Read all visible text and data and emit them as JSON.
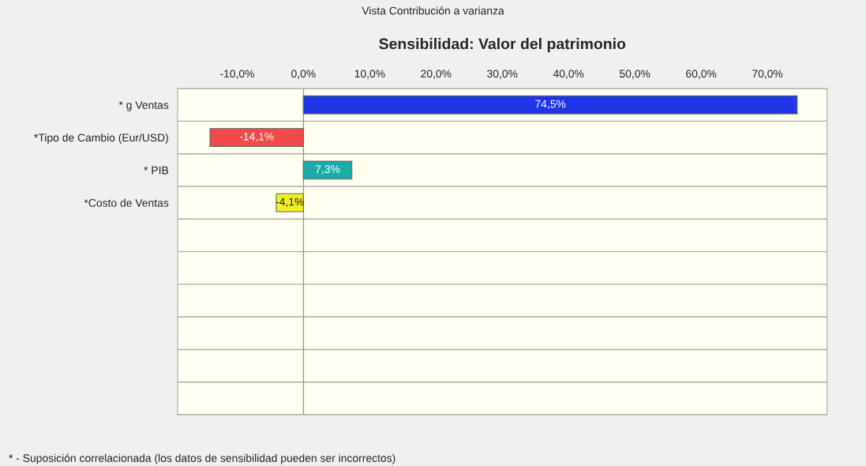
{
  "chart_data": {
    "type": "bar",
    "orientation": "horizontal",
    "title": "Sensibilidad: Valor del patrimonio",
    "categories": [
      "* g Ventas",
      "*Tipo de Cambio (Eur/USD)",
      "* PIB",
      "*Costo de Ventas",
      null,
      null,
      null,
      null,
      null,
      null
    ],
    "values": [
      74.5,
      -14.1,
      7.3,
      -4.1,
      null,
      null,
      null,
      null,
      null,
      null
    ],
    "colors": [
      "#1f35e8",
      "#f24a4a",
      "#1aada8",
      "#f0f020",
      null,
      null,
      null,
      null,
      null,
      null
    ],
    "value_labels": [
      "74,5%",
      "-14,1%",
      "7,3%",
      "-4,1%",
      null,
      null,
      null,
      null,
      null,
      null
    ],
    "xlim": [
      -19,
      79
    ],
    "xticks": [
      {
        "value": -10,
        "label": "-10,0%"
      },
      {
        "value": 0,
        "label": "0,0%"
      },
      {
        "value": 10,
        "label": "10,0%"
      },
      {
        "value": 20,
        "label": "20,0%"
      },
      {
        "value": 30,
        "label": "30,0%"
      },
      {
        "value": 40,
        "label": "40,0%"
      },
      {
        "value": 50,
        "label": "50,0%"
      },
      {
        "value": 60,
        "label": "60,0%"
      },
      {
        "value": 70,
        "label": "70,0%"
      }
    ],
    "ref_lines": [
      {
        "axis": "x",
        "value": 0,
        "color": "#999999"
      }
    ],
    "grid": "y",
    "legend": false,
    "annotations": [
      "Vista Contribución a varianza",
      "* - Suposición correlacionada (los datos de sensibilidad pueden ser incorrectos)"
    ]
  }
}
